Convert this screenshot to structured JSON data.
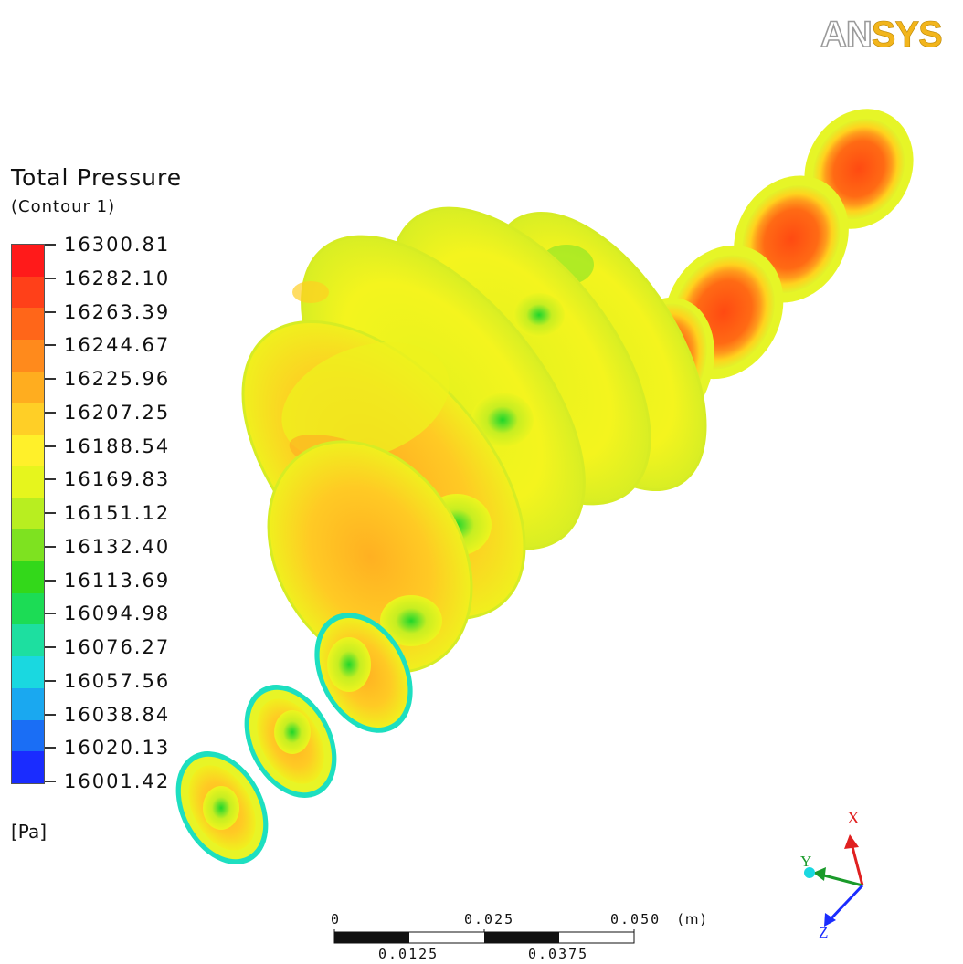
{
  "logo": {
    "part1": "AN",
    "part2": "SYS"
  },
  "legend": {
    "title": "Total Pressure",
    "subtitle": "(Contour 1)",
    "unit": "[Pa]",
    "labels": [
      "16300.81",
      "16282.10",
      "16263.39",
      "16244.67",
      "16225.96",
      "16207.25",
      "16188.54",
      "16169.83",
      "16151.12",
      "16132.40",
      "16113.69",
      "16094.98",
      "16076.27",
      "16057.56",
      "16038.84",
      "16020.13",
      "16001.42"
    ],
    "colors": [
      "#ff1a1a",
      "#ff4019",
      "#ff6619",
      "#ff8a1c",
      "#ffad1f",
      "#ffcf26",
      "#fff02a",
      "#e6f51d",
      "#b8ee20",
      "#7ee220",
      "#33d81a",
      "#1cdc55",
      "#1ddfa0",
      "#1ad8e0",
      "#1aa8f0",
      "#1a6ef5",
      "#1a2cff"
    ]
  },
  "scale_bar": {
    "top_labels": [
      "0",
      "0.025",
      "0.050"
    ],
    "bottom_labels": [
      "0.0125",
      "0.0375"
    ],
    "unit": "(m)"
  },
  "axes": {
    "x": "X",
    "y": "Y",
    "z": "Z"
  }
}
